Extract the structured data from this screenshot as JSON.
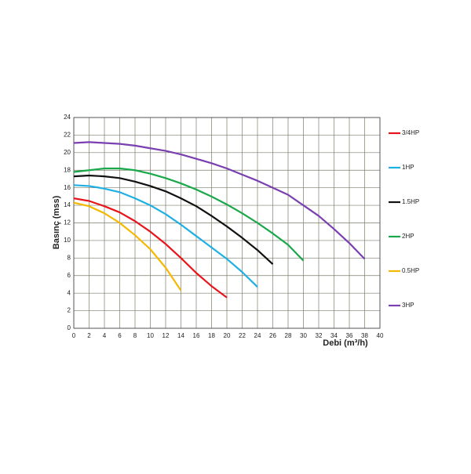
{
  "chart_data": {
    "type": "line",
    "x_label": "Debi (m³/h)",
    "y_label": "Basınç (mss)",
    "x": [
      0,
      2,
      4,
      6,
      8,
      10,
      12,
      14,
      16,
      18,
      20,
      22,
      24,
      26,
      28,
      30,
      32,
      34,
      36,
      38
    ],
    "series": [
      {
        "name": "3/4HP",
        "color": "#e8141b",
        "values": [
          14.8,
          14.5,
          13.9,
          13.2,
          12.2,
          11.0,
          9.6,
          8.0,
          6.3,
          4.8,
          3.5,
          null,
          null,
          null,
          null,
          null,
          null,
          null,
          null,
          null
        ]
      },
      {
        "name": "1HP",
        "color": "#1fb0e3",
        "values": [
          16.3,
          16.2,
          15.9,
          15.5,
          14.8,
          14.0,
          13.0,
          11.8,
          10.5,
          9.2,
          7.9,
          6.4,
          4.7,
          null,
          null,
          null,
          null,
          null,
          null,
          null
        ]
      },
      {
        "name": "1.5HP",
        "color": "#111111",
        "values": [
          17.3,
          17.4,
          17.3,
          17.1,
          16.7,
          16.2,
          15.6,
          14.8,
          13.9,
          12.8,
          11.6,
          10.3,
          8.9,
          7.3,
          null,
          null,
          null,
          null,
          null,
          null
        ]
      },
      {
        "name": "2HP",
        "color": "#19a84a",
        "values": [
          17.8,
          18.0,
          18.2,
          18.2,
          18.0,
          17.6,
          17.1,
          16.5,
          15.8,
          15.0,
          14.1,
          13.1,
          12.0,
          10.8,
          9.5,
          7.7,
          null,
          null,
          null,
          null
        ]
      },
      {
        "name": "0.5HP",
        "color": "#f5b800",
        "values": [
          14.3,
          13.9,
          13.1,
          12.0,
          10.6,
          9.0,
          6.9,
          4.3,
          null,
          null,
          null,
          null,
          null,
          null,
          null,
          null,
          null,
          null,
          null,
          null
        ]
      },
      {
        "name": "3HP",
        "color": "#7a3fb0",
        "values": [
          21.1,
          21.2,
          21.1,
          21.0,
          20.8,
          20.5,
          20.2,
          19.8,
          19.3,
          18.8,
          18.2,
          17.5,
          16.8,
          16.0,
          15.2,
          14.0,
          12.8,
          11.3,
          9.7,
          7.9
        ]
      }
    ],
    "xlim": [
      0,
      40
    ],
    "xticks": [
      0,
      2,
      4,
      6,
      8,
      10,
      12,
      14,
      16,
      18,
      20,
      22,
      24,
      26,
      28,
      30,
      32,
      34,
      36,
      38,
      40
    ],
    "ylim": [
      0,
      24
    ],
    "yticks": [
      0,
      2,
      4,
      6,
      8,
      10,
      12,
      14,
      16,
      18,
      20,
      22,
      24
    ],
    "grid": true,
    "legend": "right"
  }
}
